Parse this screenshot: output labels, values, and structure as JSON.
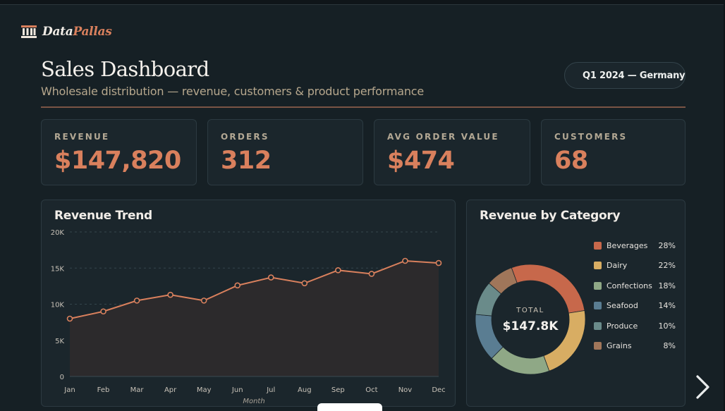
{
  "brand": {
    "name_part1": "Data",
    "name_part2": "Pallas",
    "icon": "pillar-icon"
  },
  "header": {
    "title": "Sales Dashboard",
    "subtitle": "Wholesale distribution — revenue, customers & product performance",
    "period": "Q1 2024 — Germany"
  },
  "kpis": [
    {
      "label": "REVENUE",
      "value": "$147,820"
    },
    {
      "label": "ORDERS",
      "value": "312"
    },
    {
      "label": "AVG ORDER VALUE",
      "value": "$474"
    },
    {
      "label": "CUSTOMERS",
      "value": "68"
    }
  ],
  "colors": {
    "accent": "#d9805d",
    "background": "#162025",
    "card": "#1b262c"
  },
  "chart_data": [
    {
      "type": "area",
      "title": "Revenue Trend",
      "xlabel": "Month",
      "ylabel": "",
      "categories": [
        "Jan",
        "Feb",
        "Mar",
        "Apr",
        "May",
        "Jun",
        "Jul",
        "Aug",
        "Sep",
        "Oct",
        "Nov",
        "Dec"
      ],
      "values": [
        8000,
        9000,
        10500,
        11300,
        10500,
        12600,
        13700,
        12900,
        14700,
        14200,
        16000,
        15700
      ],
      "ylim": [
        0,
        20000
      ],
      "yticks": [
        "0",
        "5K",
        "10K",
        "15K",
        "20K"
      ],
      "grid": true
    },
    {
      "type": "pie",
      "title": "Revenue by Category",
      "center_label": "TOTAL",
      "center_value": "$147.8K",
      "legend_position": "right",
      "slices": [
        {
          "name": "Beverages",
          "value": 28,
          "label": "28%",
          "color": "#c7684b"
        },
        {
          "name": "Dairy",
          "value": 22,
          "label": "22%",
          "color": "#d8ad63"
        },
        {
          "name": "Confections",
          "value": 18,
          "label": "18%",
          "color": "#8fa886"
        },
        {
          "name": "Seafood",
          "value": 14,
          "label": "14%",
          "color": "#5a7d92"
        },
        {
          "name": "Produce",
          "value": 10,
          "label": "10%",
          "color": "#6a8b8a"
        },
        {
          "name": "Grains",
          "value": 8,
          "label": "8%",
          "color": "#a0765a"
        }
      ]
    }
  ],
  "nav": {
    "next_icon": "chevron-right-icon"
  }
}
